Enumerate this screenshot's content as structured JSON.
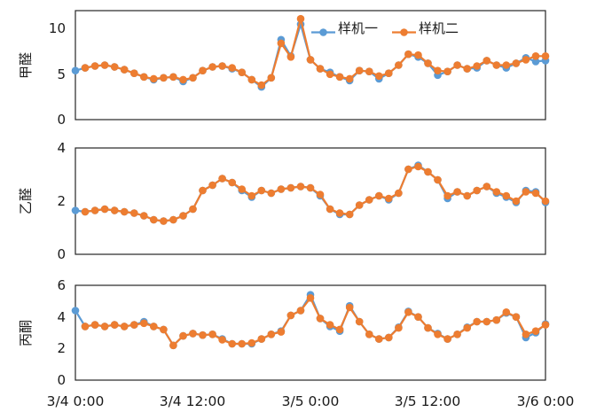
{
  "figure": {
    "background": "#ffffff",
    "axis_line_color": "#262626"
  },
  "legend": {
    "items": [
      {
        "label": "样机一",
        "color": "#5B9BD5"
      },
      {
        "label": "样机二",
        "color": "#ED7D31"
      }
    ],
    "position": "inside-top-right-of-first-plot"
  },
  "x_axis": {
    "tick_labels": [
      "3/4 0:00",
      "3/4 12:00",
      "3/5 0:00",
      "3/5 12:00",
      "3/6 0:00"
    ]
  },
  "chart_data": [
    {
      "type": "line",
      "ylabel": "甲醛",
      "ylim": [
        0,
        12
      ],
      "yticks": [
        0,
        5,
        10
      ],
      "grid": false,
      "x_range": [
        "3/4 0:00",
        "3/6 0:00"
      ],
      "series": [
        {
          "name": "样机一",
          "color": "#5B9BD5",
          "values": [
            5.4,
            5.7,
            5.9,
            6.0,
            5.8,
            5.5,
            5.1,
            4.7,
            4.4,
            4.6,
            4.7,
            4.2,
            4.6,
            5.4,
            5.8,
            5.9,
            5.6,
            5.2,
            4.4,
            3.6,
            4.6,
            8.8,
            7.0,
            10.5,
            6.6,
            5.6,
            5.2,
            4.7,
            4.3,
            5.4,
            5.3,
            4.5,
            5.1,
            6.0,
            7.2,
            6.9,
            6.2,
            4.9,
            5.3,
            6.0,
            5.6,
            5.7,
            6.5,
            6.0,
            5.7,
            6.2,
            6.8,
            6.4,
            6.5
          ]
        },
        {
          "name": "样机二",
          "color": "#ED7D31",
          "values": [
            null,
            5.7,
            5.9,
            6.0,
            5.8,
            5.5,
            5.1,
            4.7,
            4.5,
            4.6,
            4.7,
            4.4,
            4.6,
            5.4,
            5.8,
            5.9,
            5.7,
            5.2,
            4.4,
            3.8,
            4.6,
            8.4,
            6.9,
            11.1,
            6.6,
            5.6,
            5.0,
            4.7,
            4.5,
            5.4,
            5.3,
            4.8,
            5.1,
            6.0,
            7.2,
            7.1,
            6.2,
            5.4,
            5.3,
            6.0,
            5.6,
            5.9,
            6.5,
            6.0,
            6.0,
            6.2,
            6.6,
            7.0,
            7.0
          ]
        }
      ]
    },
    {
      "type": "line",
      "ylabel": "乙醛",
      "ylim": [
        0,
        4
      ],
      "yticks": [
        0,
        2,
        4
      ],
      "grid": false,
      "x_range": [
        "3/4 0:00",
        "3/6 0:00"
      ],
      "series": [
        {
          "name": "样机一",
          "color": "#5B9BD5",
          "values": [
            1.65,
            1.6,
            1.65,
            1.7,
            1.65,
            1.6,
            1.55,
            1.45,
            1.3,
            1.25,
            1.3,
            1.45,
            1.7,
            2.4,
            2.6,
            2.85,
            2.7,
            2.4,
            2.15,
            2.4,
            2.3,
            2.45,
            2.5,
            2.55,
            2.5,
            2.2,
            1.7,
            1.5,
            1.5,
            1.85,
            2.05,
            2.2,
            2.05,
            2.3,
            3.2,
            3.35,
            3.1,
            2.8,
            2.1,
            2.35,
            2.2,
            2.4,
            2.55,
            2.3,
            2.15,
            1.95,
            2.4,
            2.35,
            1.95
          ]
        },
        {
          "name": "样机二",
          "color": "#ED7D31",
          "values": [
            null,
            1.6,
            1.65,
            1.7,
            1.65,
            1.6,
            1.55,
            1.45,
            1.3,
            1.25,
            1.3,
            1.45,
            1.7,
            2.4,
            2.6,
            2.85,
            2.7,
            2.45,
            2.2,
            2.4,
            2.3,
            2.45,
            2.5,
            2.55,
            2.5,
            2.25,
            1.7,
            1.55,
            1.5,
            1.85,
            2.05,
            2.2,
            2.1,
            2.3,
            3.2,
            3.3,
            3.1,
            2.8,
            2.2,
            2.35,
            2.2,
            2.4,
            2.55,
            2.35,
            2.2,
            2.0,
            2.35,
            2.3,
            2.0
          ]
        }
      ]
    },
    {
      "type": "line",
      "ylabel": "丙酮",
      "ylim": [
        0,
        6
      ],
      "yticks": [
        0,
        2,
        4,
        6
      ],
      "grid": false,
      "x_range": [
        "3/4 0:00",
        "3/6 0:00"
      ],
      "series": [
        {
          "name": "样机一",
          "color": "#5B9BD5",
          "values": [
            4.4,
            3.4,
            3.5,
            3.4,
            3.5,
            3.4,
            3.5,
            3.7,
            3.4,
            3.2,
            2.2,
            2.8,
            2.95,
            2.85,
            2.9,
            2.6,
            2.3,
            2.3,
            2.3,
            2.6,
            2.9,
            3.1,
            4.1,
            4.4,
            5.4,
            3.9,
            3.4,
            3.1,
            4.7,
            3.7,
            2.9,
            2.6,
            2.7,
            3.35,
            4.35,
            4.0,
            3.3,
            2.95,
            2.6,
            2.9,
            3.35,
            3.7,
            3.7,
            3.8,
            4.25,
            4.0,
            2.7,
            3.0,
            3.55
          ]
        },
        {
          "name": "样机二",
          "color": "#ED7D31",
          "values": [
            null,
            3.4,
            3.5,
            3.4,
            3.5,
            3.4,
            3.5,
            3.6,
            3.4,
            3.2,
            2.2,
            2.8,
            2.95,
            2.85,
            2.9,
            2.55,
            2.3,
            2.3,
            2.35,
            2.6,
            2.9,
            3.05,
            4.1,
            4.4,
            5.2,
            3.9,
            3.5,
            3.2,
            4.6,
            3.7,
            2.9,
            2.6,
            2.7,
            3.3,
            4.3,
            4.0,
            3.3,
            2.9,
            2.6,
            2.9,
            3.3,
            3.7,
            3.7,
            3.8,
            4.3,
            4.0,
            2.9,
            3.1,
            3.5
          ]
        }
      ]
    }
  ]
}
